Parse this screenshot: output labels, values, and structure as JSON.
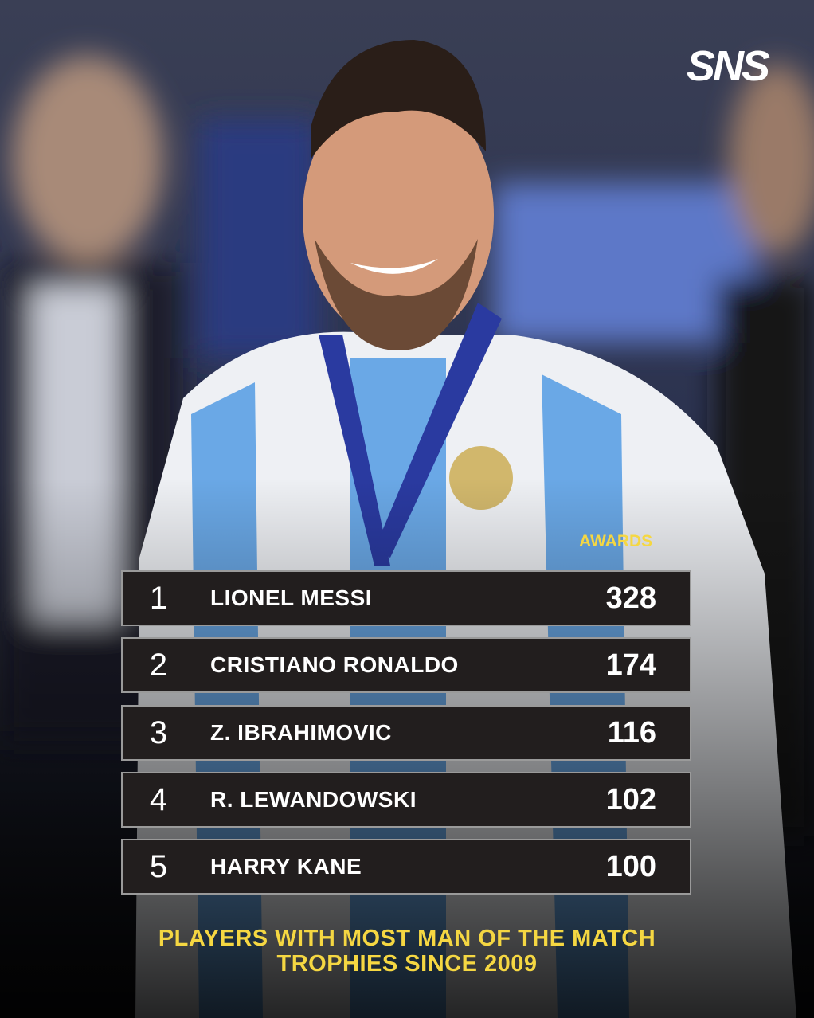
{
  "logo": "SNS",
  "table": {
    "header": "AWARDS",
    "rows": [
      [
        1,
        "LIONEL MESSI",
        328
      ],
      [
        2,
        "CRISTIANO RONALDO",
        174
      ],
      [
        3,
        "Z. IBRAHIMOVIC",
        116
      ],
      [
        4,
        "R. LEWANDOWSKI",
        102
      ],
      [
        5,
        "HARRY KANE",
        100
      ]
    ]
  },
  "caption": [
    "PLAYERS WITH MOST MAN OF THE MATCH",
    "TROPHIES SINCE 2009"
  ]
}
